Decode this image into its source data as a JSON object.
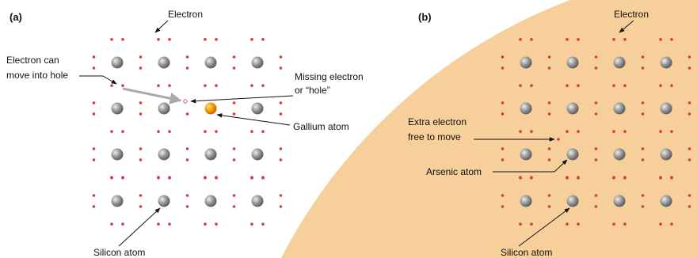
{
  "panel_a": {
    "label": "(a)",
    "electron": "Electron",
    "move_line1": "Electron can",
    "move_line2": "move into hole",
    "missing_line1": "Missing electron",
    "missing_line2": "or “hole”",
    "gallium": "Gallium atom",
    "silicon": "Silicon atom"
  },
  "panel_b": {
    "label": "(b)",
    "electron": "Electron",
    "extra_line1": "Extra electron",
    "extra_line2": "free to move",
    "arsenic": "Arsenic atom",
    "silicon": "Silicon atom"
  }
}
